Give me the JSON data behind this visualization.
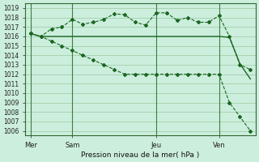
{
  "title": "Pression niveau de la mer( hPa )",
  "bg_color": "#cceedd",
  "line_color": "#1a6620",
  "ylim": [
    1005.5,
    1019.5
  ],
  "yticks": [
    1006,
    1007,
    1008,
    1009,
    1010,
    1011,
    1012,
    1013,
    1014,
    1015,
    1016,
    1017,
    1018,
    1019
  ],
  "day_labels": [
    "Mer",
    "Sam",
    "Jeu",
    "Ven"
  ],
  "day_positions": [
    0,
    4,
    12,
    18
  ],
  "series1_x": [
    0,
    1,
    2,
    3,
    4,
    5,
    6,
    7,
    8,
    9,
    10,
    11,
    12,
    13,
    14,
    15,
    16,
    17,
    18,
    19,
    20,
    21
  ],
  "series1_y": [
    1016.3,
    1016.0,
    1016.8,
    1017.0,
    1017.8,
    1017.3,
    1017.5,
    1017.8,
    1018.4,
    1018.3,
    1017.5,
    1017.2,
    1018.5,
    1018.5,
    1017.7,
    1018.0,
    1017.5,
    1017.5,
    1018.2,
    1016.0,
    1013.0,
    1012.5
  ],
  "series2_x": [
    0,
    1,
    2,
    3,
    4,
    5,
    6,
    7,
    8,
    9,
    10,
    11,
    12,
    13,
    14,
    15,
    16,
    17,
    18,
    19,
    20,
    21
  ],
  "series2_y": [
    1016.3,
    1016.0,
    1016.0,
    1016.0,
    1016.0,
    1016.0,
    1016.0,
    1016.0,
    1016.0,
    1016.0,
    1016.0,
    1016.0,
    1016.0,
    1016.0,
    1016.0,
    1016.0,
    1016.0,
    1016.0,
    1016.0,
    1015.9,
    1013.1,
    1011.5
  ],
  "series3_x": [
    0,
    1,
    2,
    3,
    4,
    5,
    6,
    7,
    8,
    9,
    10,
    11,
    12,
    13,
    14,
    15,
    16,
    17,
    18,
    19,
    20,
    21
  ],
  "series3_y": [
    1016.3,
    1016.0,
    1015.5,
    1015.0,
    1014.5,
    1014.0,
    1013.5,
    1013.0,
    1012.5,
    1012.0,
    1012.0,
    1012.0,
    1012.0,
    1012.0,
    1012.0,
    1012.0,
    1012.0,
    1012.0,
    1012.0,
    1009.0,
    1007.5,
    1006.0
  ]
}
